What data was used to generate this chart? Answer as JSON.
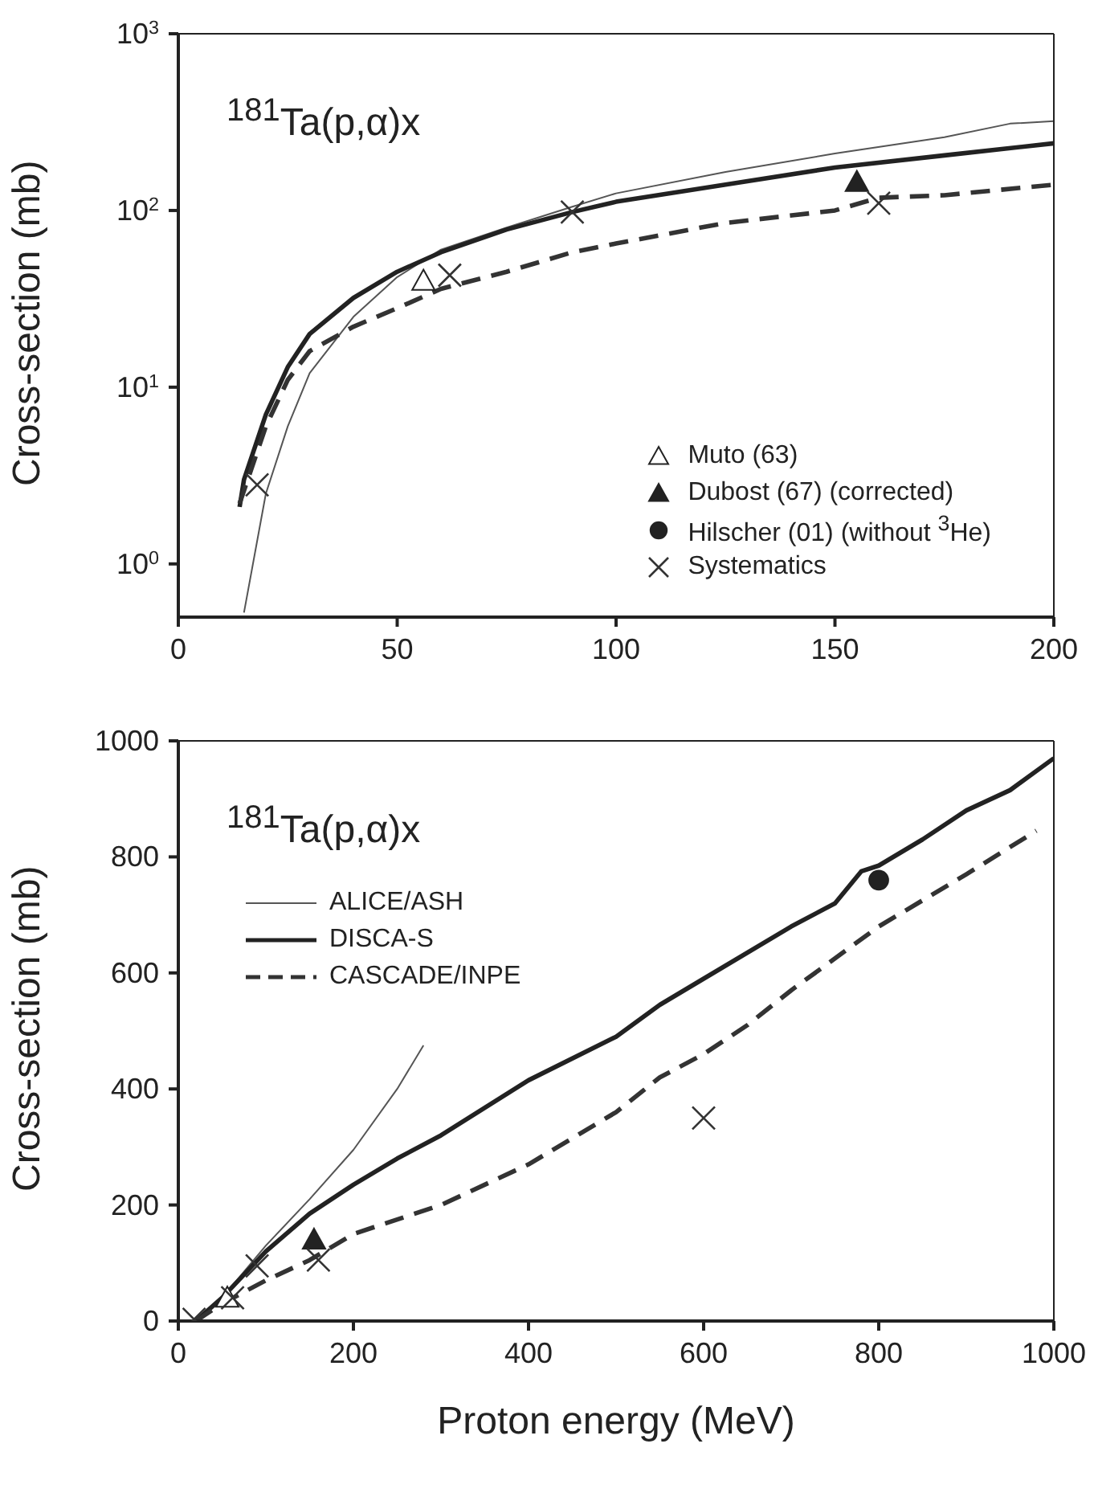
{
  "chart_data": [
    {
      "type": "line",
      "annotations": [
        "$^{181}$Ta(p,α)x"
      ],
      "ylabel": "Cross-section (mb)",
      "log": "y",
      "xlim": [
        0,
        200
      ],
      "xticks": [
        0,
        50,
        100,
        150,
        200
      ],
      "ylim": [
        0.5,
        1000
      ],
      "yticks": [
        {
          "value": 1,
          "label": "10$^{0}$"
        },
        {
          "value": 10,
          "label": "10$^{1}$"
        },
        {
          "value": 100,
          "label": "10$^{2}$"
        },
        {
          "value": 1000,
          "label": "10$^{3}$"
        }
      ],
      "grid": false,
      "legend": "bottom right",
      "series": [
        {
          "type": "line",
          "color": "#555555",
          "line_style": "solid",
          "marker": "none",
          "x": [
            15,
            20,
            25,
            30,
            40,
            50,
            60,
            75,
            90,
            100,
            125,
            150,
            175,
            190,
            200
          ],
          "values": [
            0.53,
            2.5,
            6,
            12,
            25,
            42,
            60,
            80,
            105,
            125,
            165,
            210,
            260,
            310,
            320
          ]
        },
        {
          "type": "line",
          "color": "#222222",
          "line_style": "solid",
          "marker": "none",
          "x": [
            14,
            15,
            20,
            25,
            30,
            40,
            50,
            60,
            75,
            90,
            100,
            125,
            150,
            175,
            200
          ],
          "values": [
            2.1,
            3,
            7,
            13,
            20,
            32,
            45,
            58,
            78,
            98,
            112,
            140,
            175,
            205,
            240
          ]
        },
        {
          "type": "line",
          "color": "#333333",
          "line_style": "dashed",
          "marker": "none",
          "x": [
            14,
            20,
            25,
            30,
            40,
            50,
            60,
            75,
            90,
            100,
            125,
            150,
            160,
            175,
            200
          ],
          "values": [
            2.2,
            6,
            11,
            16,
            22,
            28,
            36,
            45,
            58,
            65,
            85,
            100,
            118,
            122,
            140
          ]
        },
        {
          "type": "scatter",
          "name": "Muto (63)",
          "color": "#ffffff",
          "marker": "triangle",
          "x": [
            56
          ],
          "values": [
            40
          ]
        },
        {
          "type": "scatter",
          "name": "Dubost (67) (corrected)",
          "color": "#222222",
          "marker": "triangle",
          "x": [
            155
          ],
          "values": [
            145
          ]
        },
        {
          "type": "scatter",
          "name": "Hilscher (01) (without $^{3}$He)",
          "color": "#222222",
          "marker": "circle"
        },
        {
          "type": "scatter",
          "name": "Systematics",
          "color": "#333333",
          "marker": "cross",
          "x": [
            18,
            62,
            90,
            160
          ],
          "values": [
            2.8,
            43,
            98,
            110
          ]
        }
      ]
    },
    {
      "type": "line",
      "annotations": [
        "$^{181}$Ta(p,α)x"
      ],
      "xlabel": "Proton energy (MeV)",
      "ylabel": "Cross-section (mb)",
      "xlim": [
        0,
        1000
      ],
      "xticks": [
        0,
        200,
        400,
        600,
        800,
        1000
      ],
      "ylim": [
        0,
        1000
      ],
      "yticks": [
        0,
        200,
        400,
        600,
        800,
        1000
      ],
      "grid": false,
      "legend": "top left",
      "series": [
        {
          "type": "line",
          "name": "ALICE/ASH",
          "color": "#555555",
          "line_style": "solid",
          "marker": "none",
          "x": [
            20,
            50,
            100,
            150,
            200,
            250,
            280
          ],
          "values": [
            0,
            40,
            130,
            210,
            295,
            400,
            475
          ]
        },
        {
          "type": "line",
          "name": "DISCA-S",
          "color": "#222222",
          "line_style": "solid",
          "marker": "none",
          "x": [
            20,
            50,
            100,
            150,
            200,
            250,
            300,
            400,
            500,
            550,
            600,
            700,
            750,
            780,
            800,
            850,
            900,
            950,
            1000
          ],
          "values": [
            0,
            40,
            120,
            185,
            235,
            280,
            320,
            415,
            490,
            545,
            590,
            680,
            720,
            775,
            785,
            830,
            880,
            915,
            970
          ]
        },
        {
          "type": "line",
          "name": "CASCADE/INPE",
          "color": "#333333",
          "line_style": "dashed",
          "marker": "none",
          "x": [
            20,
            50,
            100,
            150,
            200,
            300,
            400,
            500,
            550,
            600,
            650,
            700,
            800,
            900,
            980
          ],
          "values": [
            0,
            30,
            70,
            105,
            150,
            200,
            270,
            360,
            420,
            460,
            510,
            570,
            680,
            770,
            845
          ]
        },
        {
          "type": "scatter",
          "color": "#ffffff",
          "marker": "triangle",
          "x": [
            56
          ],
          "values": [
            40
          ]
        },
        {
          "type": "scatter",
          "color": "#222222",
          "marker": "triangle",
          "x": [
            155
          ],
          "values": [
            140
          ]
        },
        {
          "type": "scatter",
          "color": "#222222",
          "marker": "circle",
          "x": [
            800
          ],
          "values": [
            760
          ]
        },
        {
          "type": "scatter",
          "color": "#333333",
          "marker": "cross",
          "x": [
            18,
            62,
            90,
            160,
            600
          ],
          "values": [
            3,
            40,
            95,
            105,
            350
          ]
        }
      ]
    }
  ]
}
